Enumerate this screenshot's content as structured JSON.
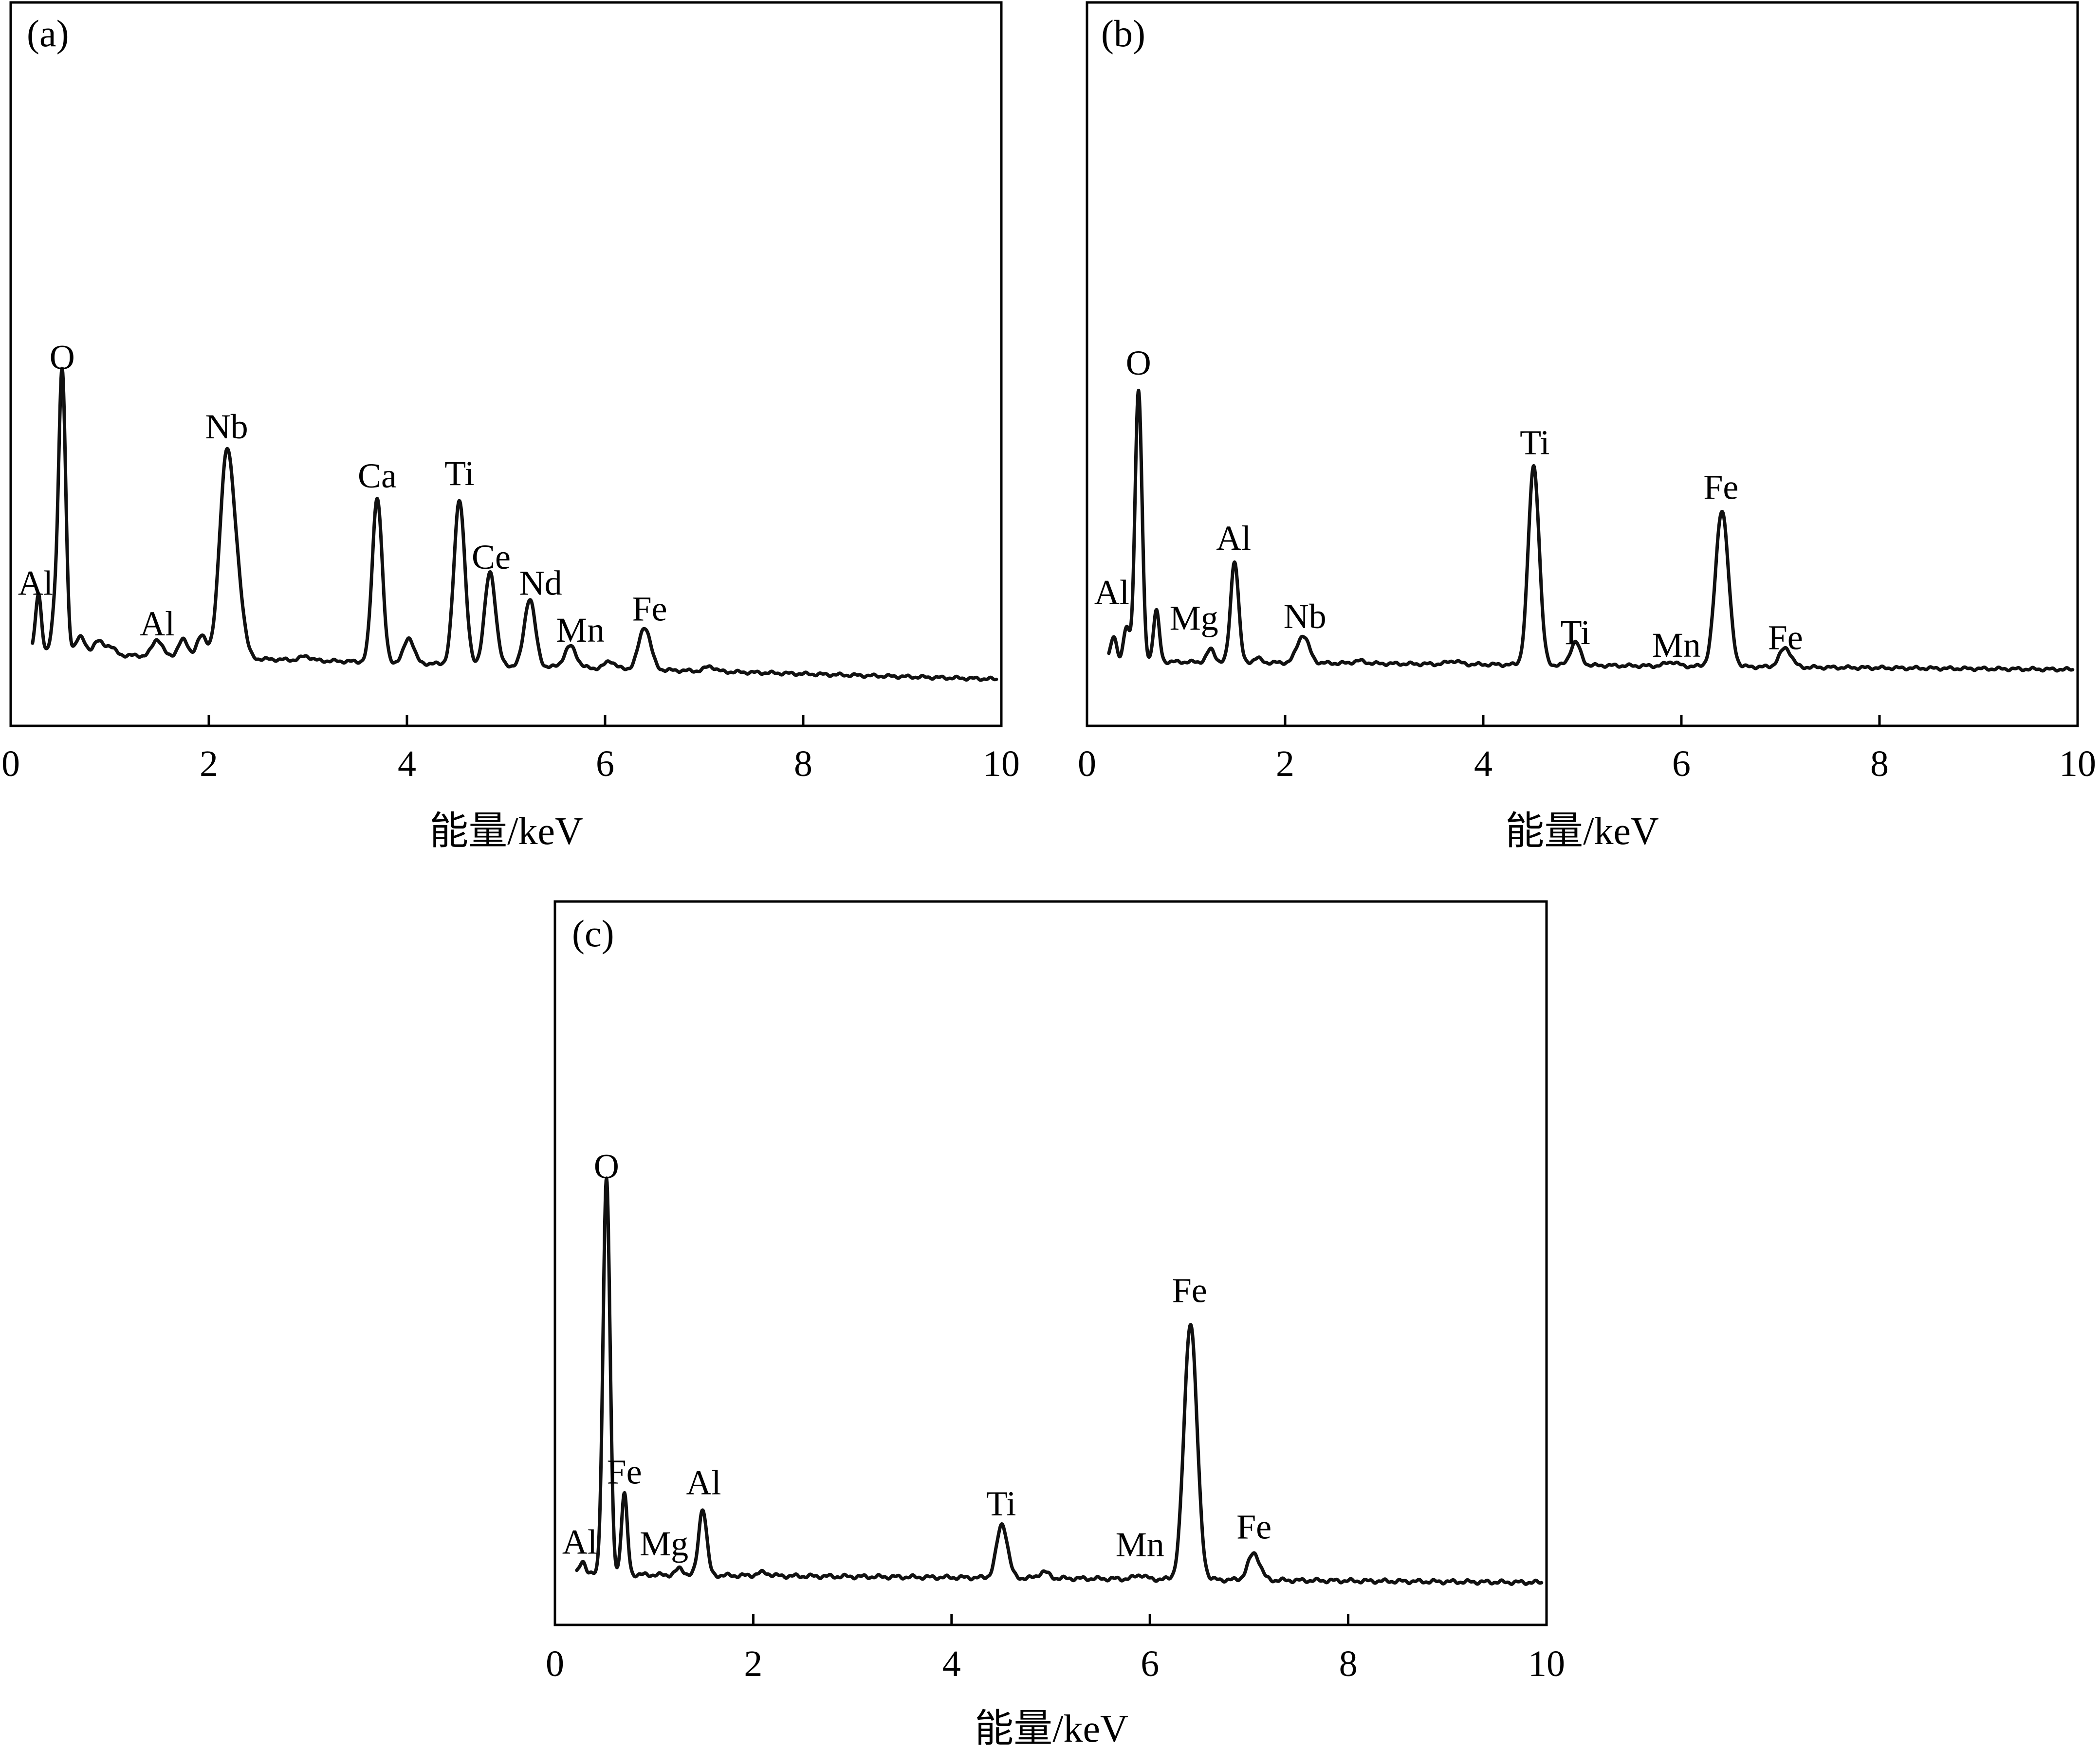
{
  "colors": {
    "line": "#111111",
    "frame": "#000000",
    "background": "#ffffff"
  },
  "chart_data": [
    {
      "type": "line",
      "panel_label": "(a)",
      "title": "",
      "xlabel": "能量/keV",
      "ylabel": "",
      "xlim": [
        0,
        10
      ],
      "ylim": [
        0,
        100
      ],
      "x_ticks": [
        "0",
        "2",
        "4",
        "6",
        "8",
        "10"
      ],
      "grid": false,
      "legend": "none",
      "series": [
        {
          "peak_labels": [
            {
              "text": "Al",
              "x": 0.25,
              "y": 20.2
            },
            {
              "text": "O",
              "x": 0.52,
              "y": 73.5
            },
            {
              "text": "Al",
              "x": 1.48,
              "y": 10.6
            },
            {
              "text": "Nb",
              "x": 2.18,
              "y": 57.1
            },
            {
              "text": "Ca",
              "x": 3.7,
              "y": 45.5
            },
            {
              "text": "Ti",
              "x": 4.53,
              "y": 46.1
            },
            {
              "text": "Ce",
              "x": 4.85,
              "y": 26.3
            },
            {
              "text": "Nd",
              "x": 5.35,
              "y": 20.2
            },
            {
              "text": "Mn",
              "x": 5.75,
              "y": 9.1
            },
            {
              "text": "Fe",
              "x": 6.45,
              "y": 14.1
            }
          ],
          "baseline_start": 6.6,
          "baseline_end": 0.2,
          "peaks": [
            {
              "x": 0.28,
              "h": 14,
              "w": 0.03
            },
            {
              "x": 0.45,
              "h": 10,
              "w": 0.035
            },
            {
              "x": 0.52,
              "h": 66,
              "w": 0.035
            },
            {
              "x": 0.7,
              "h": 4,
              "w": 0.05
            },
            {
              "x": 0.88,
              "h": 3,
              "w": 0.05
            },
            {
              "x": 1.0,
              "h": 2,
              "w": 0.05
            },
            {
              "x": 1.48,
              "h": 4,
              "w": 0.05
            },
            {
              "x": 1.74,
              "h": 4,
              "w": 0.05
            },
            {
              "x": 1.93,
              "h": 5,
              "w": 0.05
            },
            {
              "x": 2.18,
              "h": 48,
              "w": 0.07
            },
            {
              "x": 2.3,
              "h": 12,
              "w": 0.06
            },
            {
              "x": 2.98,
              "h": 1,
              "w": 0.05
            },
            {
              "x": 3.7,
              "h": 39,
              "w": 0.05
            },
            {
              "x": 4.02,
              "h": 6,
              "w": 0.05
            },
            {
              "x": 4.53,
              "h": 39,
              "w": 0.055
            },
            {
              "x": 4.84,
              "h": 22,
              "w": 0.055
            },
            {
              "x": 5.24,
              "h": 16,
              "w": 0.055
            },
            {
              "x": 5.65,
              "h": 5,
              "w": 0.06
            },
            {
              "x": 6.05,
              "h": 1.8,
              "w": 0.05
            },
            {
              "x": 6.4,
              "h": 10,
              "w": 0.06
            },
            {
              "x": 7.06,
              "h": 1.2,
              "w": 0.05
            }
          ]
        }
      ]
    },
    {
      "type": "line",
      "panel_label": "(b)",
      "title": "",
      "xlabel": "能量/keV",
      "ylabel": "",
      "xlim": [
        0,
        10
      ],
      "ylim": [
        0,
        100
      ],
      "x_ticks": [
        "0",
        "2",
        "4",
        "6",
        "8",
        "10"
      ],
      "grid": false,
      "legend": "none",
      "series": [
        {
          "peak_labels": [
            {
              "text": "Al",
              "x": 0.25,
              "y": 15.7
            },
            {
              "text": "O",
              "x": 0.52,
              "y": 69.9
            },
            {
              "text": "Mg",
              "x": 1.08,
              "y": 9.6
            },
            {
              "text": "Al",
              "x": 1.48,
              "y": 28.5
            },
            {
              "text": "Nb",
              "x": 2.2,
              "y": 10.0
            },
            {
              "text": "Ti",
              "x": 4.52,
              "y": 51.1
            },
            {
              "text": "Ti",
              "x": 4.93,
              "y": 6.2
            },
            {
              "text": "Mn",
              "x": 5.95,
              "y": 3.2
            },
            {
              "text": "Fe",
              "x": 6.4,
              "y": 40.5
            },
            {
              "text": "Fe",
              "x": 7.05,
              "y": 5.0
            }
          ],
          "baseline_start": 2.2,
          "baseline_end": 0.2,
          "peaks": [
            {
              "x": 0.27,
              "h": 6,
              "w": 0.03
            },
            {
              "x": 0.4,
              "h": 8,
              "w": 0.03
            },
            {
              "x": 0.52,
              "h": 64,
              "w": 0.035
            },
            {
              "x": 0.7,
              "h": 12,
              "w": 0.03
            },
            {
              "x": 1.25,
              "h": 3,
              "w": 0.04
            },
            {
              "x": 1.49,
              "h": 24,
              "w": 0.04
            },
            {
              "x": 1.72,
              "h": 1,
              "w": 0.04
            },
            {
              "x": 2.18,
              "h": 6.5,
              "w": 0.06
            },
            {
              "x": 2.75,
              "h": 0.6,
              "w": 0.06
            },
            {
              "x": 3.7,
              "h": 0.8,
              "w": 0.06
            },
            {
              "x": 4.51,
              "h": 47,
              "w": 0.055
            },
            {
              "x": 4.93,
              "h": 5.5,
              "w": 0.05
            },
            {
              "x": 5.9,
              "h": 1,
              "w": 0.06
            },
            {
              "x": 6.41,
              "h": 37,
              "w": 0.065
            },
            {
              "x": 7.05,
              "h": 4.5,
              "w": 0.06
            }
          ]
        }
      ]
    },
    {
      "type": "line",
      "panel_label": "(c)",
      "title": "",
      "xlabel": "能量/keV",
      "ylabel": "",
      "xlim": [
        0,
        10
      ],
      "ylim": [
        0,
        100
      ],
      "x_ticks": [
        "0",
        "2",
        "4",
        "6",
        "8",
        "10"
      ],
      "grid": false,
      "legend": "none",
      "series": [
        {
          "peak_labels": [
            {
              "text": "Al",
              "x": 0.25,
              "y": 5.5
            },
            {
              "text": "O",
              "x": 0.52,
              "y": 75.7
            },
            {
              "text": "Fe",
              "x": 0.7,
              "y": 18.6
            },
            {
              "text": "Mg",
              "x": 1.1,
              "y": 5.2
            },
            {
              "text": "Al",
              "x": 1.5,
              "y": 16.6
            },
            {
              "text": "Ti",
              "x": 4.5,
              "y": 12.7
            },
            {
              "text": "Mn",
              "x": 5.9,
              "y": 5.0
            },
            {
              "text": "Fe",
              "x": 6.4,
              "y": 52.5
            },
            {
              "text": "Fe",
              "x": 7.05,
              "y": 8.3
            }
          ],
          "baseline_start": 1.7,
          "baseline_end": 0.1,
          "peaks": [
            {
              "x": 0.28,
              "h": 2.5,
              "w": 0.03
            },
            {
              "x": 0.52,
              "h": 74,
              "w": 0.035
            },
            {
              "x": 0.7,
              "h": 15,
              "w": 0.03
            },
            {
              "x": 1.26,
              "h": 1.2,
              "w": 0.04
            },
            {
              "x": 1.49,
              "h": 12.5,
              "w": 0.04
            },
            {
              "x": 2.1,
              "h": 0.6,
              "w": 0.06
            },
            {
              "x": 4.51,
              "h": 10,
              "w": 0.055
            },
            {
              "x": 4.93,
              "h": 1.2,
              "w": 0.05
            },
            {
              "x": 5.9,
              "h": 0.8,
              "w": 0.05
            },
            {
              "x": 6.41,
              "h": 48,
              "w": 0.065
            },
            {
              "x": 7.05,
              "h": 5,
              "w": 0.06
            }
          ]
        }
      ]
    }
  ]
}
